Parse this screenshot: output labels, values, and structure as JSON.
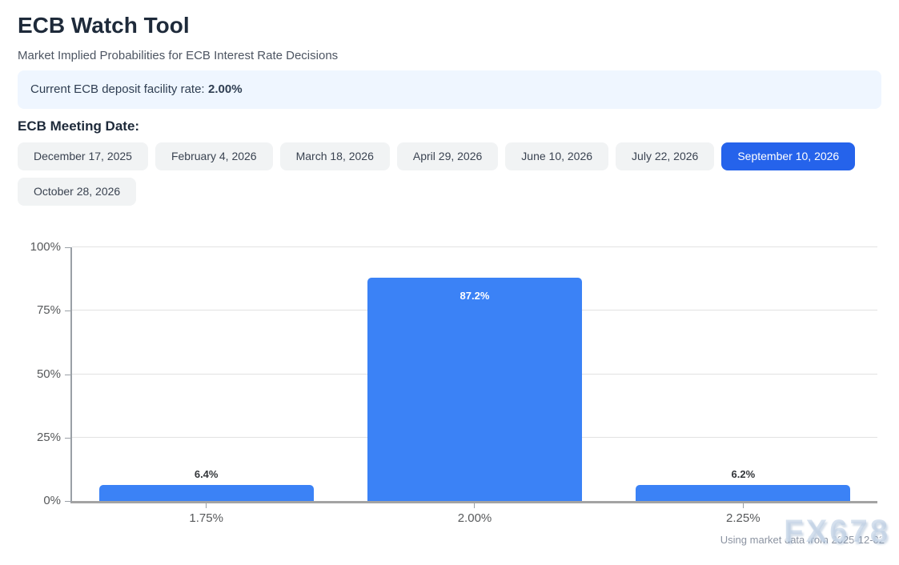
{
  "header": {
    "title": "ECB Watch Tool",
    "subtitle": "Market Implied Probabilities for ECB Interest Rate Decisions"
  },
  "banner": {
    "label": "Current ECB deposit facility rate:",
    "rate": "2.00%"
  },
  "meeting_dates": {
    "label": "ECB Meeting Date:",
    "selected": "September 10, 2026",
    "options": [
      {
        "label": "December 17, 2025",
        "selected": false
      },
      {
        "label": "February 4, 2026",
        "selected": false
      },
      {
        "label": "March 18, 2026",
        "selected": false
      },
      {
        "label": "April 29, 2026",
        "selected": false
      },
      {
        "label": "June 10, 2026",
        "selected": false
      },
      {
        "label": "July 22, 2026",
        "selected": false
      },
      {
        "label": "September 10, 2026",
        "selected": true
      },
      {
        "label": "October 28, 2026",
        "selected": false
      }
    ]
  },
  "chart_data": {
    "type": "bar",
    "categories": [
      "1.75%",
      "2.00%",
      "2.25%"
    ],
    "values": [
      6.4,
      87.2,
      6.2
    ],
    "value_labels": [
      "6.4%",
      "87.2%",
      "6.2%"
    ],
    "title": "",
    "xlabel": "",
    "ylabel": "",
    "ylim": [
      0,
      100
    ],
    "yticks": [
      0,
      25,
      50,
      75,
      100
    ],
    "ytick_labels": [
      "0%",
      "25%",
      "50%",
      "75%",
      "100%"
    ],
    "grid": true,
    "legend": false,
    "bar_color": "#3b82f6"
  },
  "footer": {
    "note": "Using market data from 2025-12-02",
    "watermark": "FX678"
  },
  "colors": {
    "accent": "#2563eb",
    "bar": "#3b82f6",
    "banner_bg": "#eff6ff",
    "button_bg": "#f1f3f4"
  }
}
